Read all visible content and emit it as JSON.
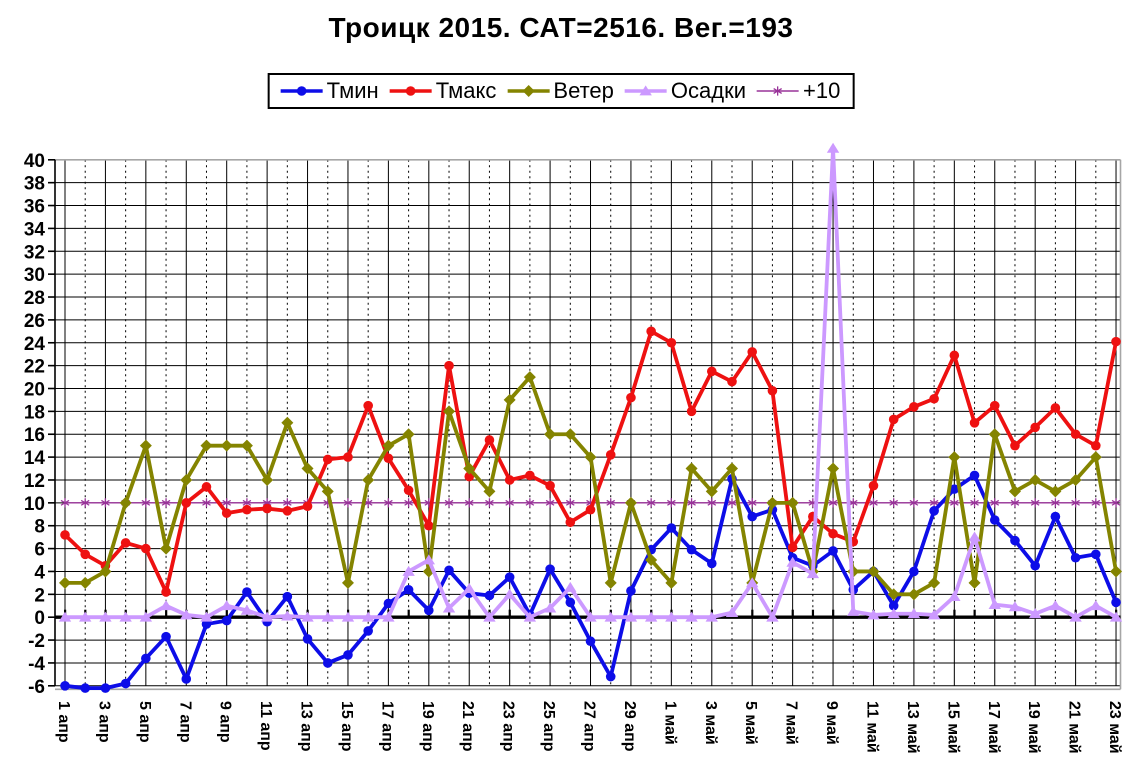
{
  "title": "Троицк 2015. САТ=2516. Вег.=193",
  "chart_data": {
    "type": "line",
    "title": "Троицк 2015. САТ=2516. Вег.=193",
    "xlabel": "",
    "ylabel": "",
    "ylim": [
      -6,
      40
    ],
    "ytick_step": 2,
    "x_axis_note": "labels shown for odd days only, rotated 90deg",
    "legend_position": "top-center",
    "grid": {
      "horizontal": "solid",
      "vertical_labeled_days": "solid",
      "vertical_other_days": "dashed"
    },
    "frame_color": "#a6a6a6",
    "axis_color": "#000000",
    "categories": [
      "1 апр",
      "2 апр",
      "3 апр",
      "4 апр",
      "5 апр",
      "6 апр",
      "7 апр",
      "8 апр",
      "9 апр",
      "10 апр",
      "11 апр",
      "12 апр",
      "13 апр",
      "14 апр",
      "15 апр",
      "16 апр",
      "17 апр",
      "18 апр",
      "19 апр",
      "20 апр",
      "21 апр",
      "22 апр",
      "23 апр",
      "24 апр",
      "25 апр",
      "26 апр",
      "27 апр",
      "28 апр",
      "29 апр",
      "30 апр",
      "1 май",
      "2 май",
      "3 май",
      "4 май",
      "5 май",
      "6 май",
      "7 май",
      "8 май",
      "9 май",
      "10 май",
      "11 май",
      "12 май",
      "13 май",
      "14 май",
      "15 май",
      "16 май",
      "17 май",
      "18 май",
      "19 май",
      "20 май",
      "21 май",
      "22 май",
      "23 май"
    ],
    "series": [
      {
        "key": "tmin",
        "name": "Тмин",
        "color": "#0d0de8",
        "marker": "circle",
        "values": [
          -6,
          -6.2,
          -6.2,
          -5.8,
          -3.6,
          -1.7,
          -5.4,
          -0.6,
          -0.3,
          2.2,
          -0.4,
          1.8,
          -1.9,
          -4,
          -3.3,
          -1.2,
          1.2,
          2.4,
          0.6,
          4.1,
          2.1,
          1.9,
          3.5,
          0.2,
          4.2,
          1.3,
          -2.1,
          -5.2,
          2.3,
          5.9,
          7.8,
          5.9,
          4.7,
          12.1,
          8.8,
          9.4,
          5.2,
          4.5,
          5.8,
          2.4,
          4,
          1,
          4,
          9.3,
          11.2,
          12.4,
          8.5,
          6.7,
          4.5,
          8.8,
          5.2,
          5.5,
          1.3
        ]
      },
      {
        "key": "tmax",
        "name": "Тмакс",
        "color": "#ee1111",
        "marker": "circle",
        "values": [
          7.2,
          5.5,
          4.5,
          6.5,
          6,
          2.2,
          10,
          11.4,
          9.1,
          9.4,
          9.5,
          9.3,
          9.7,
          13.8,
          14,
          18.5,
          13.9,
          11.1,
          8,
          22,
          12.3,
          15.5,
          12,
          12.4,
          11.5,
          8.3,
          9.4,
          14.2,
          19.2,
          25,
          24,
          18,
          21.5,
          20.6,
          23.2,
          19.8,
          6.1,
          8.8,
          7.3,
          6.6,
          11.5,
          17.3,
          18.4,
          19.1,
          22.9,
          17,
          18.5,
          15,
          16.6,
          18.3,
          16,
          15,
          24.1
        ]
      },
      {
        "key": "veter",
        "name": "Ветер",
        "color": "#848400",
        "marker": "diamond",
        "values": [
          3,
          3,
          4,
          10,
          15,
          6,
          12,
          15,
          15,
          15,
          12,
          17,
          13,
          11,
          3,
          12,
          15,
          16,
          4,
          18,
          13,
          11,
          19,
          21,
          16,
          16,
          14,
          3,
          10,
          5,
          3,
          13,
          11,
          13,
          3,
          10,
          10,
          4,
          13,
          4,
          4,
          2,
          2,
          3,
          14,
          3,
          16,
          11,
          12,
          11,
          12,
          14,
          4
        ]
      },
      {
        "key": "osadki",
        "name": "Осадки",
        "color": "#cc99ff",
        "marker": "triangle",
        "values": [
          0,
          0,
          0,
          0,
          0,
          1,
          0.2,
          0,
          1,
          0.6,
          0,
          0.1,
          0,
          0,
          0,
          0,
          0,
          4,
          5,
          0.8,
          2.5,
          0,
          2,
          0,
          0.8,
          2.6,
          0,
          0,
          0,
          0,
          0,
          0,
          0,
          0.4,
          3,
          0,
          4.8,
          3.8,
          41,
          0.5,
          0.2,
          0.3,
          0.3,
          0.2,
          1.8,
          7,
          1.1,
          0.9,
          0.3,
          1,
          0,
          1,
          0
        ]
      },
      {
        "key": "plus10",
        "name": "+10",
        "color": "#993399",
        "marker": "star",
        "constant": 10
      }
    ]
  }
}
